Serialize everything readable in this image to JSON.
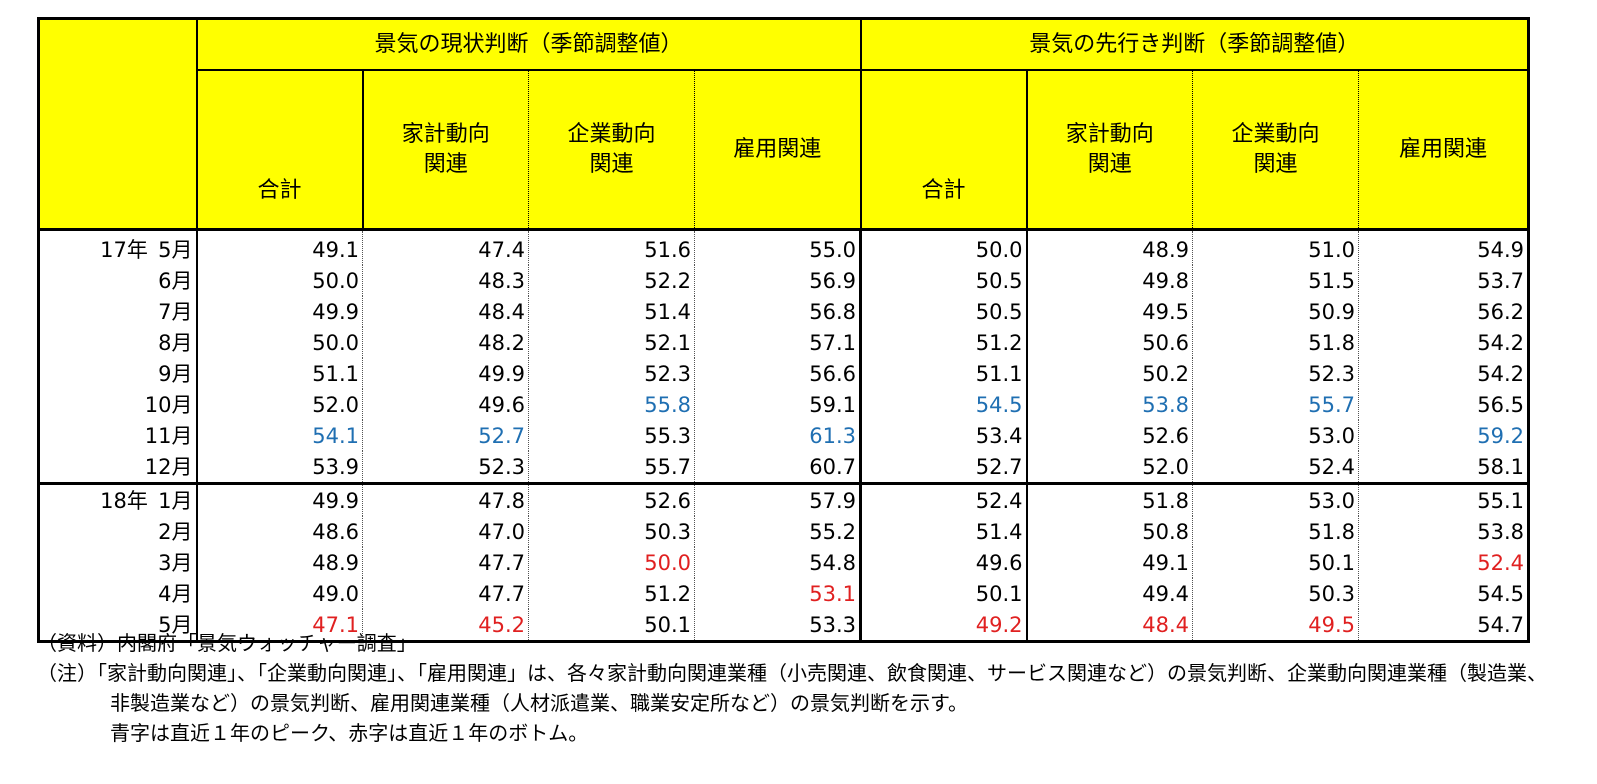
{
  "header": {
    "current_group": "景気の現状判断（季節調整値）",
    "future_group": "景気の先行き判断（季節調整値）",
    "columns": [
      "合計",
      "家計動向関連",
      "企業動向関連",
      "雇用関連"
    ],
    "columns_display": [
      {
        "l1": "合計",
        "l2": ""
      },
      {
        "l1": "家計動向",
        "l2": "関連"
      },
      {
        "l1": "企業動向",
        "l2": "関連"
      },
      {
        "l1": "雇用関連",
        "l2": ""
      }
    ]
  },
  "rows": [
    {
      "year": "17年",
      "month": "5月",
      "values": [
        "49.1",
        "47.4",
        "51.6",
        "55.0",
        "50.0",
        "48.9",
        "51.0",
        "54.9"
      ]
    },
    {
      "year": "",
      "month": "6月",
      "values": [
        "50.0",
        "48.3",
        "52.2",
        "56.9",
        "50.5",
        "49.8",
        "51.5",
        "53.7"
      ]
    },
    {
      "year": "",
      "month": "7月",
      "values": [
        "49.9",
        "48.4",
        "51.4",
        "56.8",
        "50.5",
        "49.5",
        "50.9",
        "56.2"
      ]
    },
    {
      "year": "",
      "month": "8月",
      "values": [
        "50.0",
        "48.2",
        "52.1",
        "57.1",
        "51.2",
        "50.6",
        "51.8",
        "54.2"
      ]
    },
    {
      "year": "",
      "month": "9月",
      "values": [
        "51.1",
        "49.9",
        "52.3",
        "56.6",
        "51.1",
        "50.2",
        "52.3",
        "54.2"
      ]
    },
    {
      "year": "",
      "month": "10月",
      "values": [
        "52.0",
        "49.6",
        "55.8",
        "59.1",
        "54.5",
        "53.8",
        "55.7",
        "56.5"
      ]
    },
    {
      "year": "",
      "month": "11月",
      "values": [
        "54.1",
        "52.7",
        "55.3",
        "61.3",
        "53.4",
        "52.6",
        "53.0",
        "59.2"
      ]
    },
    {
      "year": "",
      "month": "12月",
      "values": [
        "53.9",
        "52.3",
        "55.7",
        "60.7",
        "52.7",
        "52.0",
        "52.4",
        "58.1"
      ]
    },
    {
      "year": "18年",
      "month": "1月",
      "values": [
        "49.9",
        "47.8",
        "52.6",
        "57.9",
        "52.4",
        "51.8",
        "53.0",
        "55.1"
      ]
    },
    {
      "year": "",
      "month": "2月",
      "values": [
        "48.6",
        "47.0",
        "50.3",
        "55.2",
        "51.4",
        "50.8",
        "51.8",
        "53.8"
      ]
    },
    {
      "year": "",
      "month": "3月",
      "values": [
        "48.9",
        "47.7",
        "50.0",
        "54.8",
        "49.6",
        "49.1",
        "50.1",
        "52.4"
      ]
    },
    {
      "year": "",
      "month": "4月",
      "values": [
        "49.0",
        "47.7",
        "51.2",
        "53.1",
        "50.1",
        "49.4",
        "50.3",
        "54.5"
      ]
    },
    {
      "year": "",
      "month": "5月",
      "values": [
        "47.1",
        "45.2",
        "50.1",
        "53.3",
        "49.2",
        "48.4",
        "49.5",
        "54.7"
      ]
    }
  ],
  "highlights": {
    "peak": {
      "color": "#1f6fb2",
      "cells": [
        [
          6,
          0
        ],
        [
          6,
          1
        ],
        [
          5,
          2
        ],
        [
          6,
          3
        ],
        [
          5,
          4
        ],
        [
          5,
          5
        ],
        [
          5,
          6
        ],
        [
          6,
          7
        ]
      ]
    },
    "bottom": {
      "color": "#e02020",
      "cells": [
        [
          12,
          0
        ],
        [
          12,
          1
        ],
        [
          10,
          2
        ],
        [
          11,
          3
        ],
        [
          12,
          4
        ],
        [
          12,
          5
        ],
        [
          12,
          6
        ],
        [
          10,
          7
        ]
      ]
    }
  },
  "notes": {
    "source": "（資料）内閣府「景気ウォッチャー調査」",
    "note": "（注）「家計動向関連」、「企業動向関連」、「雇用関連」は、各々家計動向関連業種（小売関連、飲食関連、サービス関連など）の景気判断、企業動向関連業種（製造業、非製造業など）の景気判断、雇用関連業種（人材派遣業、職業安定所など）の景気判断を示す。",
    "legend": "青字は直近１年のピーク、赤字は直近１年のボトム。"
  }
}
